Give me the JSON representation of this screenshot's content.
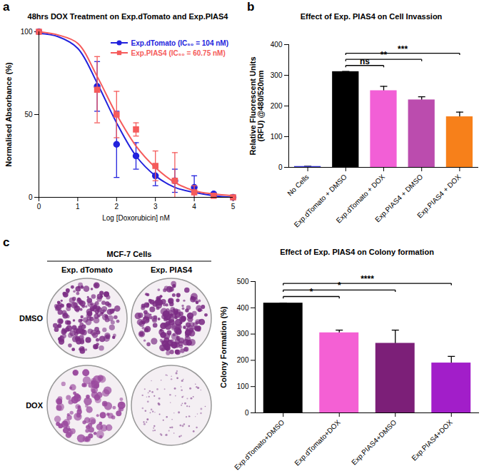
{
  "chart_data": [
    {
      "panel_label": "a",
      "type": "line",
      "title": "48hrs DOX Treatment on Exp.dTomato and Exp.PIAS4",
      "x_label": "Log [Doxorubicin] nM",
      "y_label": "Normalised Absorbance (%)",
      "x": [
        0,
        0.5,
        1,
        1.5,
        2,
        2.5,
        3,
        3.5,
        4,
        4.5,
        5
      ],
      "series": [
        {
          "name": "Exp.dTomato (IC₅₀ = 104 nM)",
          "color": "#2222dd",
          "marker": "circle",
          "values": [
            100,
            null,
            null,
            67,
            32,
            25,
            13,
            10,
            6,
            2,
            0
          ],
          "errors": [
            0,
            null,
            null,
            15,
            20,
            8,
            6,
            7,
            7,
            1,
            0
          ],
          "fit": [
            99,
            97,
            90,
            69,
            45,
            25,
            13,
            6,
            3,
            1,
            0
          ]
        },
        {
          "name": "Exp.PIAS4 (IC₅₀ = 60.75 nM)",
          "color": "#f55b5b",
          "marker": "square",
          "values": [
            100,
            null,
            null,
            65,
            50,
            41,
            19,
            10,
            3,
            1,
            0
          ],
          "errors": [
            0,
            null,
            null,
            20,
            14,
            4,
            9,
            17,
            4,
            1,
            0
          ],
          "fit": [
            100,
            98,
            93,
            73,
            50,
            31,
            18,
            9,
            4,
            2,
            1
          ]
        }
      ],
      "xlim": [
        0,
        5
      ],
      "xticks": [
        0,
        1,
        2,
        3,
        4,
        5
      ],
      "ylim": [
        0,
        100
      ],
      "yticks": [
        0,
        50,
        100
      ],
      "grid": false,
      "legend": "upper right"
    },
    {
      "panel_label": "b",
      "type": "bar",
      "title": "Effect of Exp. PIAS4 on Cell Invassion",
      "y_label": "Relative Fluorescent Units (RFU) @480/520nm",
      "categories": [
        "No Cells",
        "Exp.dTomato + DMSO",
        "Exp.dTomato + DOX",
        "Exp.PIAS4 + DMSO",
        "Exp.PIAS4 + DOX"
      ],
      "values": [
        3,
        312,
        250,
        220,
        165
      ],
      "errors": [
        0,
        0,
        14,
        10,
        15
      ],
      "colors": [
        "#3b3bd6",
        "#000000",
        "#f25fd6",
        "#bb4cae",
        "#f7801a"
      ],
      "ylim": [
        0,
        400
      ],
      "yticks": [
        0,
        100,
        200,
        300,
        400
      ],
      "grid": false,
      "annotations": [
        {
          "from": "Exp.dTomato + DMSO",
          "to": "Exp.dTomato + DOX",
          "label": "ns"
        },
        {
          "from": "Exp.dTomato + DMSO",
          "to": "Exp.PIAS4 + DMSO",
          "label": "**"
        },
        {
          "from": "Exp.dTomato + DMSO",
          "to": "Exp.PIAS4 + DOX",
          "label": "***"
        }
      ]
    },
    {
      "panel_label": "c",
      "type": "bar",
      "title": "Effect of Exp. PIAS4 on Colony formation",
      "y_label": "Colony Formation (%)",
      "categories": [
        "Exp.dTomato+DMSO",
        "Exp.dTomato+DOX",
        "Exp.PIAS4+DMSO",
        "Exp.PIAS4+DOX"
      ],
      "values": [
        418,
        305,
        265,
        190
      ],
      "errors": [
        0,
        10,
        50,
        25
      ],
      "colors": [
        "#000000",
        "#f460d4",
        "#7c1f78",
        "#a21ec9"
      ],
      "ylim": [
        0,
        500
      ],
      "yticks": [
        0,
        100,
        200,
        300,
        400,
        500
      ],
      "grid": false,
      "annotations": [
        {
          "from": "Exp.dTomato+DMSO",
          "to": "Exp.dTomato+DOX",
          "label": "*"
        },
        {
          "from": "Exp.dTomato+DMSO",
          "to": "Exp.PIAS4+DMSO",
          "label": "*"
        },
        {
          "from": "Exp.dTomato+DMSO",
          "to": "Exp.PIAS4+DOX",
          "label": "****"
        }
      ]
    }
  ],
  "colony_images": {
    "title": "MCF-7 Cells",
    "columns": [
      "Exp. dTomato",
      "Exp. PIAS4"
    ],
    "rows": [
      "DMSO",
      "DOX"
    ]
  }
}
